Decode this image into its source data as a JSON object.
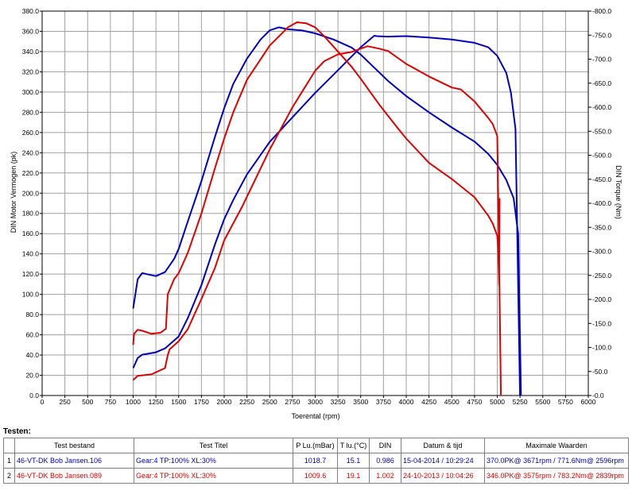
{
  "chart_data": {
    "type": "line",
    "xlabel": "Toerental (rpm)",
    "ylabel_left": "DIN Motor Vermogen (pk)",
    "ylabel_right": "DIN Torque (Nm)",
    "xlim": [
      0,
      6000
    ],
    "ylim_left": [
      0,
      380
    ],
    "ylim_right": [
      0,
      800
    ],
    "x_ticks": [
      "0",
      "250",
      "500",
      "750",
      "1000",
      "1250",
      "1500",
      "1750",
      "2000",
      "2250",
      "2500",
      "2750",
      "3000",
      "3250",
      "3500",
      "3750",
      "4000",
      "4250",
      "4500",
      "4750",
      "5000",
      "5250",
      "5500",
      "5750",
      "6000"
    ],
    "y_left_ticks": [
      "0.0",
      "20.0",
      "40.0",
      "60.0",
      "80.0",
      "100.0",
      "120.0",
      "140.0",
      "160.0",
      "180.0",
      "200.0",
      "220.0",
      "240.0",
      "260.0",
      "280.0",
      "300.0",
      "320.0",
      "340.0",
      "360.0",
      "380.0"
    ],
    "y_right_ticks": [
      "0.0",
      "50.0",
      "100.0",
      "150.0",
      "200.0",
      "250.0",
      "300.0",
      "350.0",
      "400.0",
      "450.0",
      "500.0",
      "550.0",
      "600.0",
      "650.0",
      "700.0",
      "750.0",
      "800.0"
    ],
    "grid": true,
    "series": [
      {
        "color": "#0000c0",
        "axis": "left",
        "points": [
          [
            1000,
            86
          ],
          [
            1050,
            115
          ],
          [
            1100,
            121
          ],
          [
            1150,
            120
          ],
          [
            1250,
            118
          ],
          [
            1350,
            122
          ],
          [
            1450,
            135
          ],
          [
            1500,
            145
          ],
          [
            1600,
            172
          ],
          [
            1750,
            212
          ],
          [
            1900,
            256
          ],
          [
            2000,
            284
          ],
          [
            2100,
            308
          ],
          [
            2250,
            333
          ],
          [
            2400,
            352
          ],
          [
            2500,
            361
          ],
          [
            2600,
            364
          ],
          [
            2700,
            362
          ],
          [
            2850,
            361
          ],
          [
            3000,
            358
          ],
          [
            3200,
            352
          ],
          [
            3400,
            344
          ],
          [
            3500,
            337
          ],
          [
            3650,
            324
          ],
          [
            3800,
            311
          ],
          [
            4000,
            296
          ],
          [
            4250,
            280
          ],
          [
            4500,
            265
          ],
          [
            4750,
            251
          ],
          [
            4900,
            239
          ],
          [
            5000,
            228
          ],
          [
            5100,
            213
          ],
          [
            5180,
            195
          ],
          [
            5230,
            160
          ],
          [
            5260,
            0
          ]
        ]
      },
      {
        "color": "#0000c0",
        "axis": "right",
        "points": [
          [
            1000,
            57
          ],
          [
            1050,
            78
          ],
          [
            1100,
            85
          ],
          [
            1250,
            90
          ],
          [
            1350,
            98
          ],
          [
            1500,
            123
          ],
          [
            1600,
            161
          ],
          [
            1750,
            230
          ],
          [
            1900,
            315
          ],
          [
            2000,
            367
          ],
          [
            2100,
            407
          ],
          [
            2250,
            460
          ],
          [
            2500,
            528
          ],
          [
            2750,
            579
          ],
          [
            3000,
            630
          ],
          [
            3250,
            677
          ],
          [
            3500,
            725
          ],
          [
            3650,
            749
          ],
          [
            3671,
            748
          ],
          [
            3800,
            747
          ],
          [
            4000,
            748
          ],
          [
            4250,
            745
          ],
          [
            4500,
            741
          ],
          [
            4750,
            734
          ],
          [
            4900,
            725
          ],
          [
            5000,
            707
          ],
          [
            5100,
            671
          ],
          [
            5150,
            630
          ],
          [
            5200,
            555
          ],
          [
            5250,
            0
          ]
        ]
      },
      {
        "color": "#e00000",
        "axis": "left",
        "points": [
          [
            1000,
            50
          ],
          [
            1010,
            61
          ],
          [
            1050,
            65
          ],
          [
            1100,
            64
          ],
          [
            1200,
            61
          ],
          [
            1300,
            62
          ],
          [
            1360,
            66
          ],
          [
            1380,
            100
          ],
          [
            1450,
            115
          ],
          [
            1500,
            121
          ],
          [
            1600,
            141
          ],
          [
            1750,
            180
          ],
          [
            1900,
            225
          ],
          [
            2000,
            254
          ],
          [
            2100,
            280
          ],
          [
            2250,
            312
          ],
          [
            2500,
            346
          ],
          [
            2700,
            364
          ],
          [
            2800,
            369
          ],
          [
            2900,
            368
          ],
          [
            3000,
            364
          ],
          [
            3100,
            355
          ],
          [
            3250,
            340
          ],
          [
            3400,
            325
          ],
          [
            3500,
            313
          ],
          [
            3700,
            288
          ],
          [
            3900,
            265
          ],
          [
            4000,
            254
          ],
          [
            4250,
            230
          ],
          [
            4500,
            214
          ],
          [
            4750,
            196
          ],
          [
            4900,
            178
          ],
          [
            4950,
            170
          ],
          [
            5000,
            158
          ],
          [
            5010,
            145
          ],
          [
            5020,
            110
          ],
          [
            5025,
            195
          ]
        ]
      },
      {
        "color": "#e00000",
        "axis": "right",
        "points": [
          [
            1000,
            32
          ],
          [
            1050,
            41
          ],
          [
            1200,
            44
          ],
          [
            1350,
            57
          ],
          [
            1380,
            84
          ],
          [
            1400,
            96
          ],
          [
            1500,
            113
          ],
          [
            1600,
            138
          ],
          [
            1750,
            201
          ],
          [
            1900,
            266
          ],
          [
            2000,
            323
          ],
          [
            2200,
            394
          ],
          [
            2500,
            512
          ],
          [
            2750,
            600
          ],
          [
            3000,
            676
          ],
          [
            3100,
            696
          ],
          [
            3250,
            710
          ],
          [
            3400,
            715
          ],
          [
            3500,
            722
          ],
          [
            3575,
            727
          ],
          [
            3700,
            722
          ],
          [
            3800,
            717
          ],
          [
            4000,
            690
          ],
          [
            4250,
            664
          ],
          [
            4500,
            641
          ],
          [
            4600,
            637
          ],
          [
            4750,
            612
          ],
          [
            4900,
            578
          ],
          [
            4950,
            565
          ],
          [
            5000,
            540
          ],
          [
            5010,
            420
          ],
          [
            5030,
            150
          ],
          [
            5040,
            0
          ]
        ]
      }
    ]
  },
  "testen_label": "Testen:",
  "table": {
    "headers": [
      "Test bestand",
      "Test Titel",
      "P Lu.(mBar)",
      "T lu.(°C)",
      "DIN",
      "Datum & tijd",
      "Maximale Waarden"
    ],
    "rows": [
      {
        "index": "1",
        "bestand": "46-VT-DK Bob Jansen.106",
        "titel": "Gear:4 TP:100% XL:30%",
        "p_lu": "1018.7",
        "t_lu": "15.1",
        "din": "0.986",
        "datum": "15-04-2014 / 10:29:24",
        "max": "370.0PK@ 3671rpm / 771.6Nm@ 2596rpm"
      },
      {
        "index": "2",
        "bestand": "46-VT-DK Bob Jansen.089",
        "titel": "Gear:4 TP:100% XL:30%",
        "p_lu": "1009.6",
        "t_lu": "19.1",
        "din": "1.002",
        "datum": "24-10-2013 / 10:04:26",
        "max": "346.0PK@ 3575rpm / 783.2Nm@ 2839rpm"
      }
    ]
  }
}
